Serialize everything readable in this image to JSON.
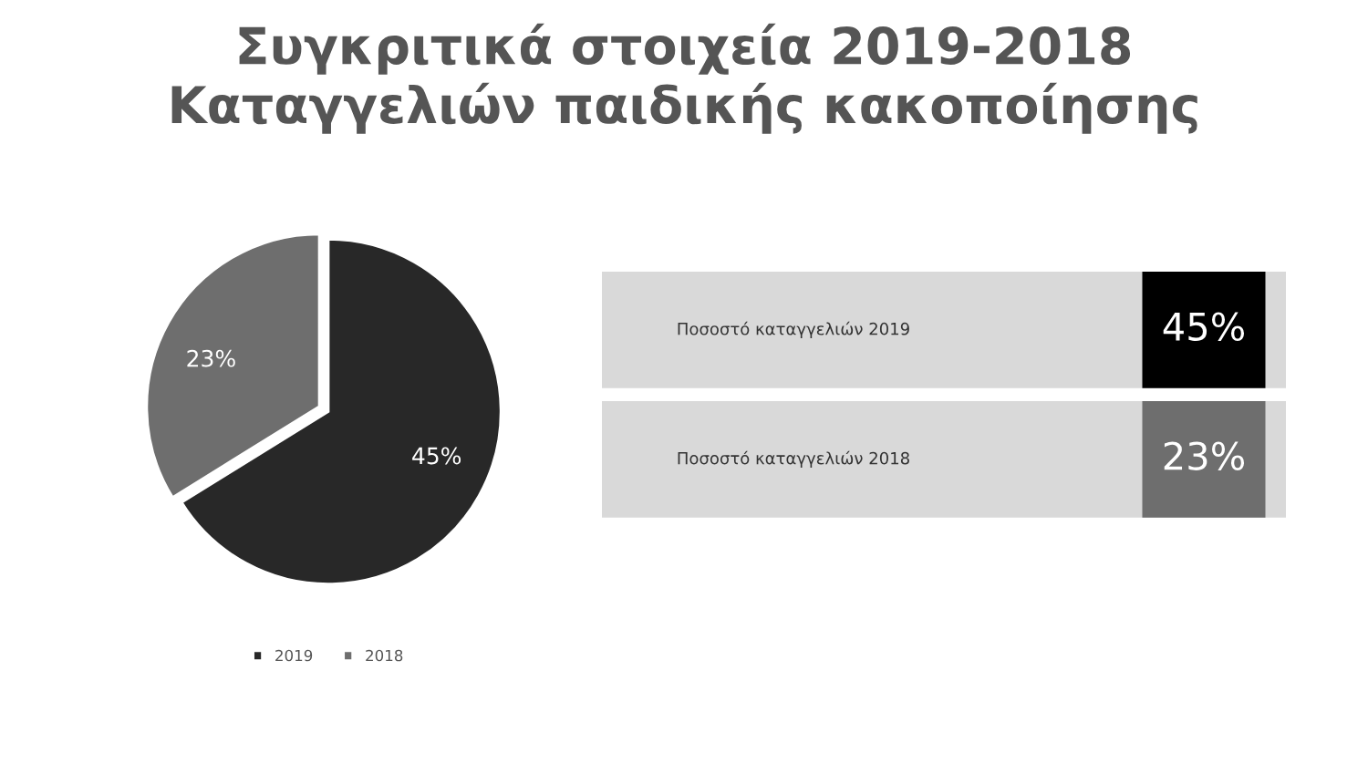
{
  "chart_data": [
    {
      "type": "pie",
      "title": "Συγκριτικά στοιχεία 2019-2018\nΚαταγγελιών παιδικής κακοποίησης",
      "categories": [
        "2019",
        "2018"
      ],
      "values": [
        45,
        23
      ],
      "value_labels": [
        "45%",
        "23%"
      ],
      "colors": [
        "#282828",
        "#6e6e6e"
      ],
      "legend": "bottom"
    },
    {
      "type": "other",
      "categories": [
        "Ποσοστό καταγγελιών 2019",
        "Ποσοστό καταγγελιών 2018"
      ],
      "value_labels": [
        "45%",
        "23%"
      ]
    }
  ]
}
